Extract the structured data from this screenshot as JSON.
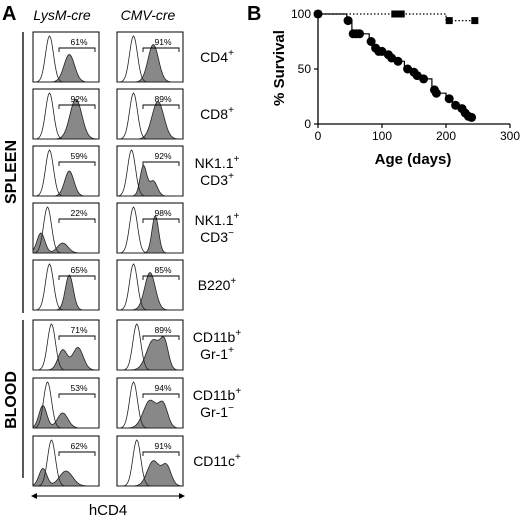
{
  "panel_a": {
    "letter": "A",
    "column_headers": [
      "LysM-cre",
      "CMV-cre"
    ],
    "groups": [
      {
        "label": "SPLEEN",
        "rows": 5
      },
      {
        "label": "BLOOD",
        "rows": 3
      }
    ],
    "rows": [
      {
        "label_lines": [
          {
            "main": "CD4",
            "sup": "+"
          }
        ],
        "lysm_pct": "61%",
        "cmv_pct": "91%"
      },
      {
        "label_lines": [
          {
            "main": "CD8",
            "sup": "+"
          }
        ],
        "lysm_pct": "92%",
        "cmv_pct": "89%"
      },
      {
        "label_lines": [
          {
            "main": "NK1.1",
            "sup": "+"
          },
          {
            "main": "CD3",
            "sup": "+"
          }
        ],
        "lysm_pct": "59%",
        "cmv_pct": "92%"
      },
      {
        "label_lines": [
          {
            "main": "NK1.1",
            "sup": "+"
          },
          {
            "main": "CD3",
            "sup": "−"
          }
        ],
        "lysm_pct": "22%",
        "cmv_pct": "98%"
      },
      {
        "label_lines": [
          {
            "main": "B220",
            "sup": "+"
          }
        ],
        "lysm_pct": "65%",
        "cmv_pct": "85%"
      },
      {
        "label_lines": [
          {
            "main": "CD11b",
            "sup": "+"
          },
          {
            "main": "Gr-1",
            "sup": "+"
          }
        ],
        "lysm_pct": "71%",
        "cmv_pct": "89%"
      },
      {
        "label_lines": [
          {
            "main": "CD11b",
            "sup": "+"
          },
          {
            "main": "Gr-1",
            "sup": "−"
          }
        ],
        "lysm_pct": "53%",
        "cmv_pct": "94%"
      },
      {
        "label_lines": [
          {
            "main": "CD11c",
            "sup": "+"
          }
        ],
        "lysm_pct": "62%",
        "cmv_pct": "91%"
      }
    ],
    "x_axis_label": "hCD4"
  },
  "panel_b": {
    "letter": "B",
    "chart_data": {
      "type": "line",
      "title": "",
      "xlabel": "Age (days)",
      "ylabel": "% Survival",
      "xlim": [
        0,
        300
      ],
      "ylim": [
        0,
        100
      ],
      "x_ticks": [
        0,
        100,
        200,
        300
      ],
      "y_ticks": [
        0,
        50,
        100
      ],
      "grid": false,
      "series": [
        {
          "marker": "square",
          "line_style": "dotted",
          "points": [
            [
              0,
              100
            ],
            [
              120,
              100
            ],
            [
              125,
              100
            ],
            [
              130,
              100
            ],
            [
              205,
              94
            ],
            [
              245,
              94
            ]
          ],
          "step_path": [
            [
              0,
              100
            ],
            [
              200,
              100
            ],
            [
              200,
              94
            ],
            [
              245,
              94
            ]
          ]
        },
        {
          "marker": "circle",
          "line_style": "solid",
          "points": [
            [
              0,
              100
            ],
            [
              47,
              94
            ],
            [
              55,
              82
            ],
            [
              60,
              82
            ],
            [
              65,
              82
            ],
            [
              83,
              75
            ],
            [
              90,
              69
            ],
            [
              95,
              66
            ],
            [
              100,
              66
            ],
            [
              110,
              63
            ],
            [
              115,
              60
            ],
            [
              125,
              57
            ],
            [
              140,
              50
            ],
            [
              150,
              47
            ],
            [
              155,
              44
            ],
            [
              165,
              41
            ],
            [
              182,
              31
            ],
            [
              185,
              28
            ],
            [
              205,
              23
            ],
            [
              215,
              17
            ],
            [
              225,
              14
            ],
            [
              230,
              10
            ],
            [
              235,
              7
            ],
            [
              240,
              6
            ]
          ],
          "step_path": [
            [
              0,
              100
            ],
            [
              45,
              100
            ],
            [
              45,
              94
            ],
            [
              53,
              94
            ],
            [
              53,
              82
            ],
            [
              80,
              82
            ],
            [
              80,
              75
            ],
            [
              88,
              75
            ],
            [
              88,
              69
            ],
            [
              92,
              69
            ],
            [
              92,
              66
            ],
            [
              105,
              66
            ],
            [
              105,
              63
            ],
            [
              112,
              63
            ],
            [
              112,
              60
            ],
            [
              120,
              60
            ],
            [
              120,
              57
            ],
            [
              135,
              57
            ],
            [
              135,
              50
            ],
            [
              145,
              50
            ],
            [
              145,
              47
            ],
            [
              152,
              47
            ],
            [
              152,
              44
            ],
            [
              160,
              44
            ],
            [
              160,
              41
            ],
            [
              178,
              41
            ],
            [
              178,
              31
            ],
            [
              183,
              31
            ],
            [
              183,
              28
            ],
            [
              200,
              28
            ],
            [
              200,
              23
            ],
            [
              210,
              23
            ],
            [
              210,
              17
            ],
            [
              220,
              17
            ],
            [
              220,
              14
            ],
            [
              228,
              14
            ],
            [
              228,
              10
            ],
            [
              233,
              10
            ],
            [
              233,
              7
            ],
            [
              240,
              7
            ]
          ]
        }
      ]
    }
  }
}
